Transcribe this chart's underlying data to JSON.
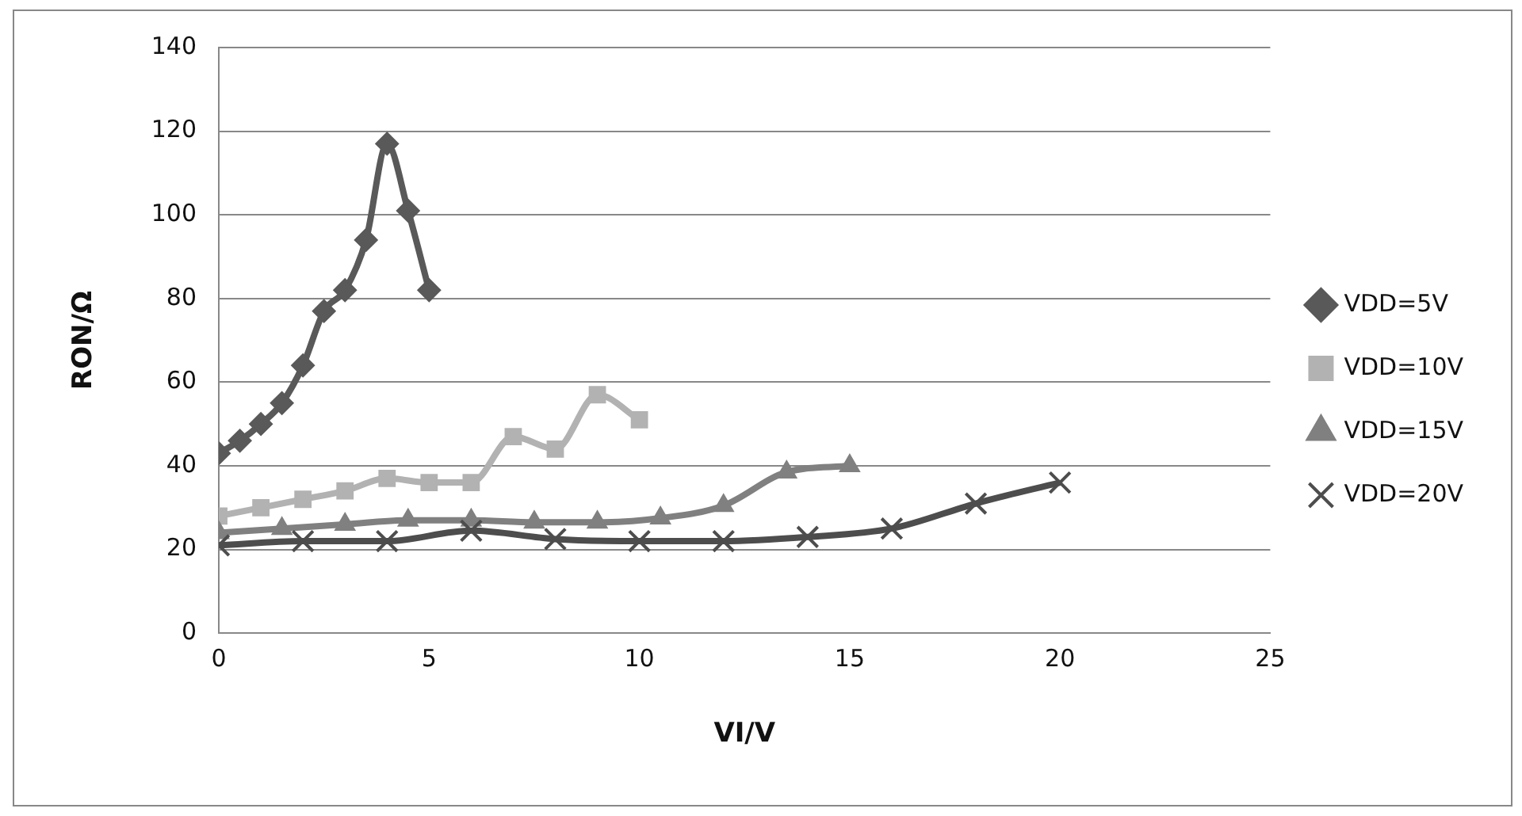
{
  "chart_data": {
    "type": "line",
    "xlabel": "VI/V",
    "ylabel": "RON/Ω",
    "xlim": [
      0,
      25
    ],
    "xticks": [
      0,
      5,
      10,
      15,
      20,
      25
    ],
    "ylim": [
      0,
      140
    ],
    "yticks": [
      0,
      20,
      40,
      60,
      80,
      100,
      120,
      140
    ],
    "grid": "y",
    "legend": "right",
    "series": [
      {
        "name": "VDD=5V",
        "color": "#595959",
        "marker": "diamond",
        "x": [
          0,
          0.5,
          1,
          1.5,
          2,
          2.5,
          3,
          3.5,
          4,
          4.5,
          5
        ],
        "values": [
          43,
          46,
          50,
          55,
          64,
          77,
          82,
          94,
          117,
          101,
          82
        ]
      },
      {
        "name": "VDD=10V",
        "color": "#b2b2b2",
        "marker": "square",
        "x": [
          0,
          1,
          2,
          3,
          4,
          5,
          6,
          7,
          8,
          9,
          10
        ],
        "values": [
          28,
          30,
          32,
          34,
          37,
          36,
          36,
          47,
          44,
          57,
          51
        ]
      },
      {
        "name": "VDD=15V",
        "color": "#808080",
        "marker": "triangle",
        "x": [
          0,
          1.5,
          3,
          4.5,
          6,
          7.5,
          9,
          10.5,
          12,
          13.5,
          15
        ],
        "values": [
          24,
          25,
          26,
          27,
          27,
          26.5,
          26.5,
          27.5,
          30.5,
          38.5,
          40
        ]
      },
      {
        "name": "VDD=20V",
        "color": "#4d4d4d",
        "marker": "cross",
        "x": [
          0,
          2,
          4,
          6,
          8,
          10,
          12,
          14,
          16,
          18,
          20
        ],
        "values": [
          21,
          22,
          22,
          24.5,
          22.5,
          22,
          22,
          23,
          25,
          31,
          36
        ]
      }
    ]
  }
}
